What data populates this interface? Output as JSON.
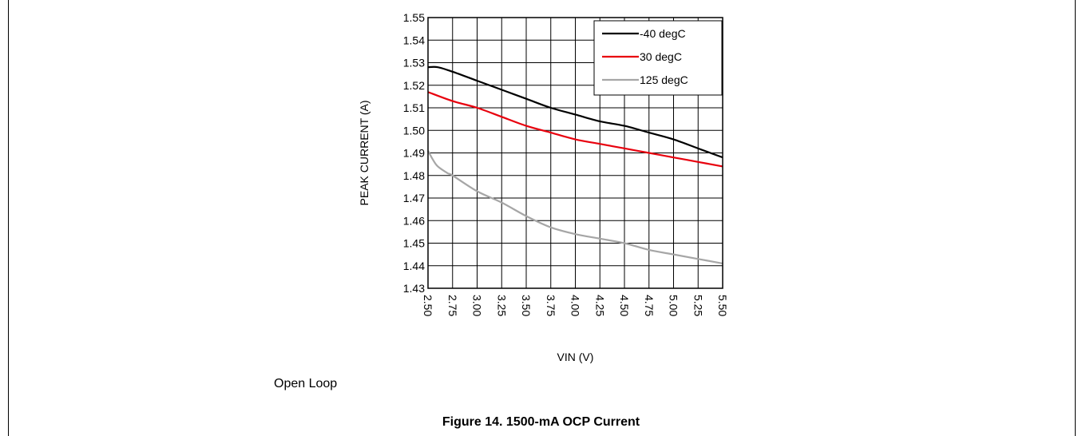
{
  "chart_data": {
    "type": "line",
    "xlabel": "VIN (V)",
    "ylabel": "PEAK CURRENT (A)",
    "xlim": [
      2.5,
      5.5
    ],
    "ylim": [
      1.43,
      1.55
    ],
    "xticks": [
      "2.50",
      "2.75",
      "3.00",
      "3.25",
      "3.50",
      "3.75",
      "4.00",
      "4.25",
      "4.50",
      "4.75",
      "5.00",
      "5.25",
      "5.50"
    ],
    "yticks": [
      "1.43",
      "1.44",
      "1.45",
      "1.46",
      "1.47",
      "1.48",
      "1.49",
      "1.50",
      "1.51",
      "1.52",
      "1.53",
      "1.54",
      "1.55"
    ],
    "grid": true,
    "legend_position": "top-right",
    "series": [
      {
        "name": "-40 degC",
        "color": "#000000",
        "x": [
          2.5,
          2.6,
          2.75,
          3.0,
          3.25,
          3.5,
          3.75,
          4.0,
          4.25,
          4.5,
          4.75,
          5.0,
          5.25,
          5.5
        ],
        "y": [
          1.528,
          1.528,
          1.526,
          1.522,
          1.518,
          1.514,
          1.51,
          1.507,
          1.504,
          1.502,
          1.499,
          1.496,
          1.492,
          1.488
        ]
      },
      {
        "name": "30 degC",
        "color": "#e8000d",
        "x": [
          2.5,
          2.75,
          3.0,
          3.25,
          3.5,
          3.75,
          4.0,
          4.25,
          4.5,
          4.75,
          5.0,
          5.25,
          5.5
        ],
        "y": [
          1.517,
          1.513,
          1.51,
          1.506,
          1.502,
          1.499,
          1.496,
          1.494,
          1.492,
          1.49,
          1.488,
          1.486,
          1.484
        ]
      },
      {
        "name": "125 degC",
        "color": "#a6a6a6",
        "x": [
          2.5,
          2.55,
          2.6,
          2.7,
          2.75,
          3.0,
          3.25,
          3.5,
          3.75,
          4.0,
          4.25,
          4.5,
          4.75,
          5.0,
          5.25,
          5.5
        ],
        "y": [
          1.491,
          1.487,
          1.484,
          1.481,
          1.48,
          1.473,
          1.468,
          1.462,
          1.457,
          1.454,
          1.452,
          1.45,
          1.447,
          1.445,
          1.443,
          1.441
        ]
      }
    ]
  },
  "note": "Open Loop",
  "caption": "Figure 14. 1500-mA OCP Current"
}
